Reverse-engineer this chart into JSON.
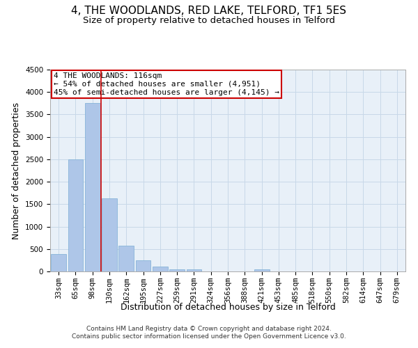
{
  "title": "4, THE WOODLANDS, RED LAKE, TELFORD, TF1 5ES",
  "subtitle": "Size of property relative to detached houses in Telford",
  "xlabel": "Distribution of detached houses by size in Telford",
  "ylabel": "Number of detached properties",
  "categories": [
    "33sqm",
    "65sqm",
    "98sqm",
    "130sqm",
    "162sqm",
    "195sqm",
    "227sqm",
    "259sqm",
    "291sqm",
    "324sqm",
    "356sqm",
    "388sqm",
    "421sqm",
    "453sqm",
    "485sqm",
    "518sqm",
    "550sqm",
    "582sqm",
    "614sqm",
    "647sqm",
    "679sqm"
  ],
  "values": [
    390,
    2500,
    3750,
    1630,
    580,
    245,
    105,
    50,
    40,
    0,
    0,
    0,
    50,
    0,
    0,
    0,
    0,
    0,
    0,
    0,
    0
  ],
  "bar_color": "#aec6e8",
  "bar_edge_color": "#7aadd4",
  "marker_color": "#cc0000",
  "ylim": [
    0,
    4500
  ],
  "yticks": [
    0,
    500,
    1000,
    1500,
    2000,
    2500,
    3000,
    3500,
    4000,
    4500
  ],
  "annotation_title": "4 THE WOODLANDS: 116sqm",
  "annotation_line1": "← 54% of detached houses are smaller (4,951)",
  "annotation_line2": "45% of semi-detached houses are larger (4,145) →",
  "annotation_box_color": "#ffffff",
  "annotation_box_edge": "#cc0000",
  "footer_line1": "Contains HM Land Registry data © Crown copyright and database right 2024.",
  "footer_line2": "Contains public sector information licensed under the Open Government Licence v3.0.",
  "bg_color": "#ffffff",
  "plot_bg_color": "#e8f0f8",
  "grid_color": "#c8d8e8",
  "title_fontsize": 11,
  "subtitle_fontsize": 9.5,
  "xlabel_fontsize": 9,
  "ylabel_fontsize": 9,
  "tick_fontsize": 7.5,
  "annotation_fontsize": 8,
  "footer_fontsize": 6.5
}
